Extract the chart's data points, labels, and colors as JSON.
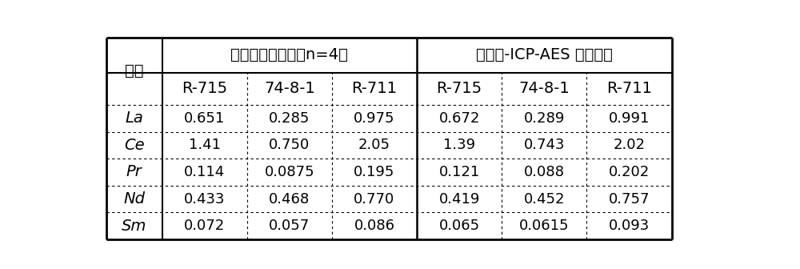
{
  "col_header_row1_elem": "元素",
  "col_header_row1_group1": "本方法测定值％（n=4）",
  "col_header_row1_group2": "碱熔融-ICP-AES 测定值％",
  "col_header_row2": [
    "R-715",
    "74-8-1",
    "R-711",
    "R-715",
    "74-8-1",
    "R-711"
  ],
  "rows": [
    [
      "La",
      "0.651",
      "0.285",
      "0.975",
      "0.672",
      "0.289",
      "0.991"
    ],
    [
      "Ce",
      "1.41",
      "0.750",
      "2.05",
      "1.39",
      "0.743",
      "2.02"
    ],
    [
      "Pr",
      "0.114",
      "0.0875",
      "0.195",
      "0.121",
      "0.088",
      "0.202"
    ],
    [
      "Nd",
      "0.433",
      "0.468",
      "0.770",
      "0.419",
      "0.452",
      "0.757"
    ],
    [
      "Sm",
      "0.072",
      "0.057",
      "0.086",
      "0.065",
      "0.0615",
      "0.093"
    ]
  ],
  "background_color": "#ffffff",
  "text_color": "#000000",
  "font_size_header": 14,
  "font_size_subheader": 14,
  "font_size_data": 13,
  "font_size_element": 14
}
